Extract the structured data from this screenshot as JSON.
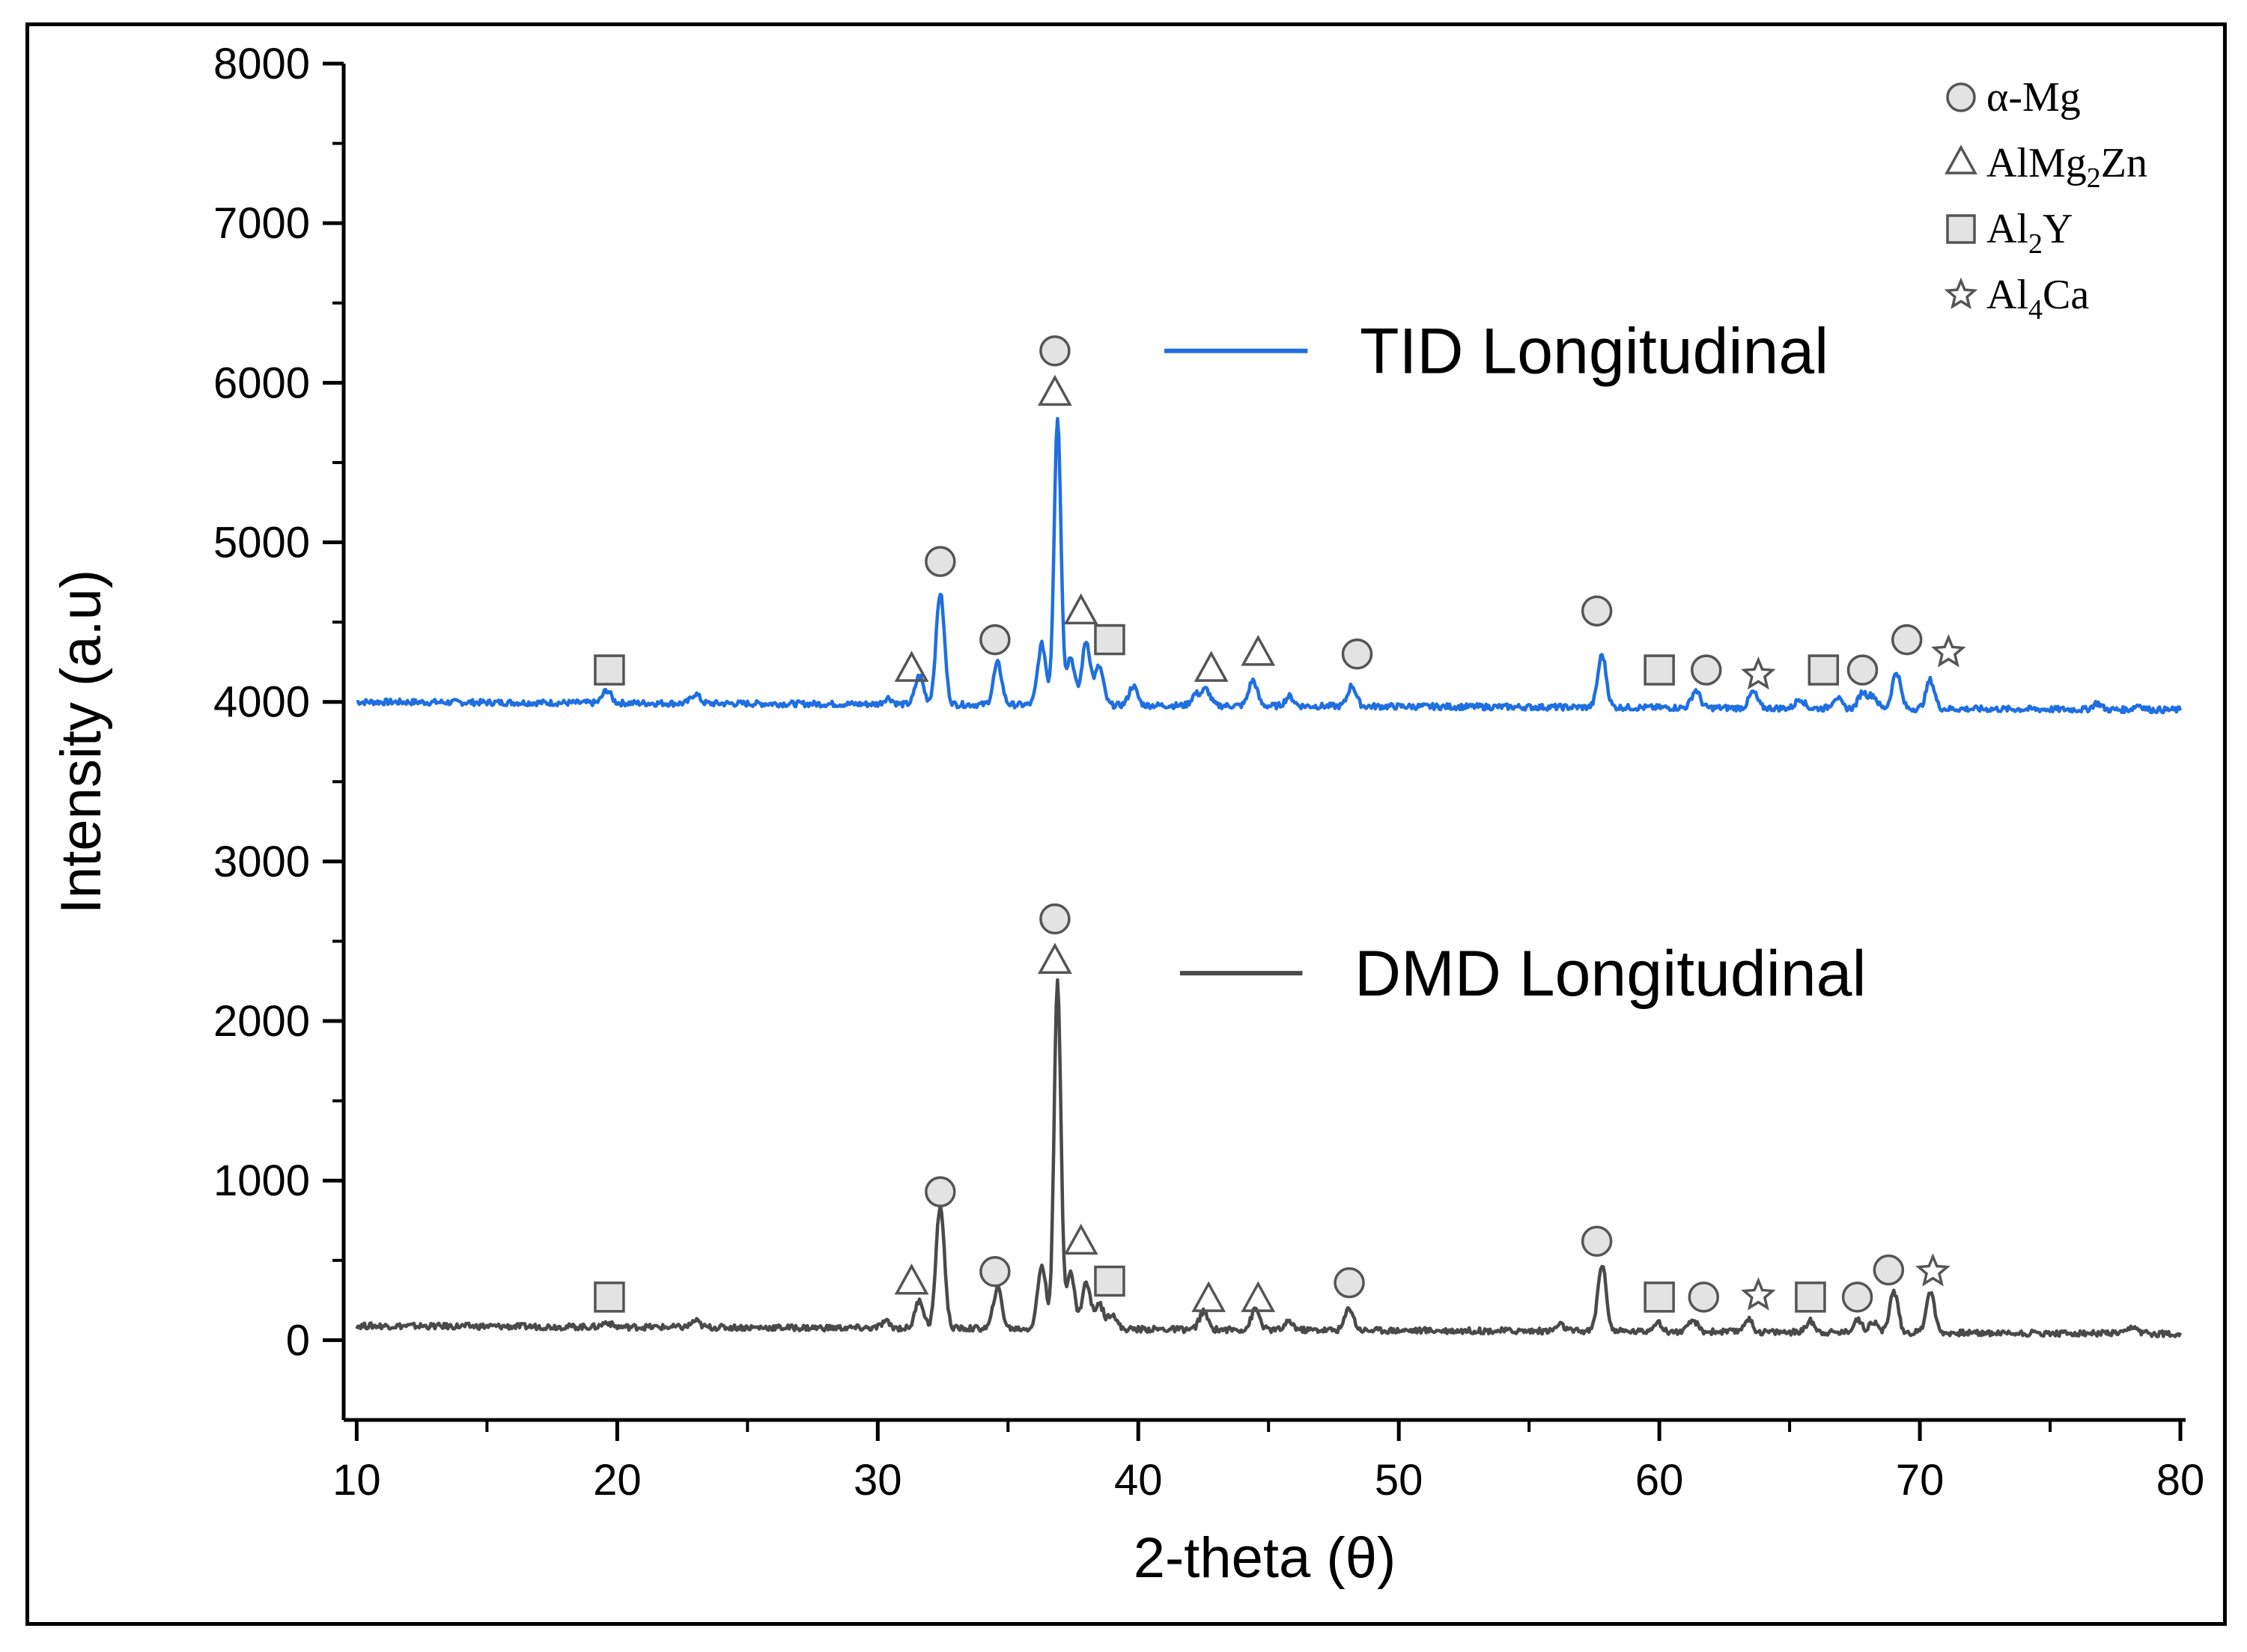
{
  "colors": {
    "tid": "#1f6fe0",
    "dmd": "#4a4a4a",
    "marker_fill": "#e3e3e3",
    "marker_stroke": "#555555",
    "axis": "#000000"
  },
  "chart_data": {
    "type": "line",
    "xlabel": "2-theta (θ)",
    "ylabel": "Intensity (a.u)",
    "xlim": [
      9.5,
      80.2
    ],
    "ylim": [
      -500,
      8000
    ],
    "xticks": [
      10,
      20,
      30,
      40,
      50,
      60,
      70,
      80
    ],
    "yticks": [
      0,
      1000,
      2000,
      3000,
      4000,
      5000,
      6000,
      7000,
      8000
    ],
    "series": [
      {
        "name": "TID Longitudinal",
        "key": "tid",
        "baseline": 3950,
        "peaks": [
          [
            19.6,
            80
          ],
          [
            23.0,
            60
          ],
          [
            30.4,
            40
          ],
          [
            31.6,
            180
          ],
          [
            32.4,
            700
          ],
          [
            34.6,
            260
          ],
          [
            36.3,
            380
          ],
          [
            36.9,
            1800
          ],
          [
            37.4,
            300
          ],
          [
            38.0,
            400
          ],
          [
            38.5,
            240
          ],
          [
            39.8,
            120
          ],
          [
            42.2,
            70
          ],
          [
            42.6,
            100
          ],
          [
            44.4,
            160
          ],
          [
            45.8,
            60
          ],
          [
            48.2,
            130
          ],
          [
            57.8,
            330
          ],
          [
            61.4,
            110
          ],
          [
            63.6,
            100
          ],
          [
            65.4,
            60
          ],
          [
            66.8,
            70
          ],
          [
            67.8,
            100
          ],
          [
            68.2,
            80
          ],
          [
            69.1,
            230
          ],
          [
            70.4,
            180
          ],
          [
            76.8,
            40
          ],
          [
            78.4,
            30
          ]
        ],
        "end_points": [
          [
            10,
            4000
          ],
          [
            80,
            3950
          ]
        ]
      },
      {
        "name": "DMD Longitudinal",
        "key": "dmd",
        "baseline": 60,
        "peaks": [
          [
            19.6,
            30
          ],
          [
            23.0,
            40
          ],
          [
            30.3,
            40
          ],
          [
            31.6,
            180
          ],
          [
            32.4,
            770
          ],
          [
            34.6,
            260
          ],
          [
            36.3,
            400
          ],
          [
            36.9,
            2170
          ],
          [
            37.4,
            350
          ],
          [
            38.0,
            290
          ],
          [
            38.5,
            160
          ],
          [
            39.0,
            100
          ],
          [
            42.5,
            110
          ],
          [
            44.5,
            130
          ],
          [
            45.8,
            50
          ],
          [
            48.1,
            140
          ],
          [
            56.2,
            40
          ],
          [
            57.8,
            420
          ],
          [
            59.9,
            60
          ],
          [
            61.3,
            70
          ],
          [
            63.4,
            80
          ],
          [
            65.8,
            70
          ],
          [
            67.6,
            80
          ],
          [
            68.2,
            70
          ],
          [
            69.0,
            260
          ],
          [
            70.4,
            260
          ],
          [
            78.2,
            40
          ]
        ],
        "end_points": [
          [
            10,
            90
          ],
          [
            80,
            40
          ]
        ]
      }
    ],
    "series_labels": [
      {
        "text": "TID Longitudinal",
        "key": "tid",
        "x": 48.5,
        "y": 6200,
        "line_x": [
          41.0,
          46.5
        ]
      },
      {
        "text": "DMD Longitudinal",
        "key": "dmd",
        "x": 48.3,
        "y": 2300,
        "line_x": [
          41.6,
          46.3
        ]
      }
    ],
    "markers": [
      {
        "shape": "circle",
        "x": 36.8,
        "y": 6200
      },
      {
        "shape": "triangle",
        "x": 36.8,
        "y": 5930
      },
      {
        "shape": "circle",
        "x": 32.4,
        "y": 4880
      },
      {
        "shape": "circle",
        "x": 34.5,
        "y": 4390
      },
      {
        "shape": "circle",
        "x": 48.4,
        "y": 4300
      },
      {
        "shape": "circle",
        "x": 57.6,
        "y": 4570
      },
      {
        "shape": "circle",
        "x": 61.8,
        "y": 4200
      },
      {
        "shape": "circle",
        "x": 67.8,
        "y": 4200
      },
      {
        "shape": "circle",
        "x": 69.5,
        "y": 4390
      },
      {
        "shape": "triangle",
        "x": 31.3,
        "y": 4200
      },
      {
        "shape": "triangle",
        "x": 37.8,
        "y": 4560
      },
      {
        "shape": "triangle",
        "x": 42.8,
        "y": 4200
      },
      {
        "shape": "triangle",
        "x": 44.6,
        "y": 4300
      },
      {
        "shape": "square",
        "x": 19.7,
        "y": 4200
      },
      {
        "shape": "square",
        "x": 38.9,
        "y": 4390
      },
      {
        "shape": "square",
        "x": 60.0,
        "y": 4200
      },
      {
        "shape": "square",
        "x": 66.3,
        "y": 4200
      },
      {
        "shape": "star",
        "x": 63.8,
        "y": 4170
      },
      {
        "shape": "star",
        "x": 71.1,
        "y": 4310
      },
      {
        "shape": "circle",
        "x": 36.8,
        "y": 2640
      },
      {
        "shape": "triangle",
        "x": 36.8,
        "y": 2370
      },
      {
        "shape": "circle",
        "x": 32.4,
        "y": 930
      },
      {
        "shape": "circle",
        "x": 34.5,
        "y": 430
      },
      {
        "shape": "circle",
        "x": 48.1,
        "y": 360
      },
      {
        "shape": "circle",
        "x": 57.6,
        "y": 620
      },
      {
        "shape": "circle",
        "x": 61.7,
        "y": 270
      },
      {
        "shape": "circle",
        "x": 67.6,
        "y": 270
      },
      {
        "shape": "circle",
        "x": 68.8,
        "y": 440
      },
      {
        "shape": "triangle",
        "x": 31.3,
        "y": 360
      },
      {
        "shape": "triangle",
        "x": 37.8,
        "y": 610
      },
      {
        "shape": "triangle",
        "x": 42.7,
        "y": 250
      },
      {
        "shape": "triangle",
        "x": 44.6,
        "y": 250
      },
      {
        "shape": "square",
        "x": 19.7,
        "y": 270
      },
      {
        "shape": "square",
        "x": 38.9,
        "y": 370
      },
      {
        "shape": "square",
        "x": 60.0,
        "y": 270
      },
      {
        "shape": "square",
        "x": 65.8,
        "y": 270
      },
      {
        "shape": "star",
        "x": 63.8,
        "y": 280
      },
      {
        "shape": "star",
        "x": 70.5,
        "y": 430
      }
    ],
    "legend": {
      "placement": "top-right",
      "entries": [
        {
          "shape": "circle",
          "text": "α-Mg",
          "sub": "",
          "after": ""
        },
        {
          "shape": "triangle",
          "text": "AlMg",
          "sub": "2",
          "after": "Zn"
        },
        {
          "shape": "square",
          "text": "Al",
          "sub": "2",
          "after": "Y"
        },
        {
          "shape": "star",
          "text": "Al",
          "sub": "4",
          "after": "Ca"
        }
      ]
    }
  }
}
